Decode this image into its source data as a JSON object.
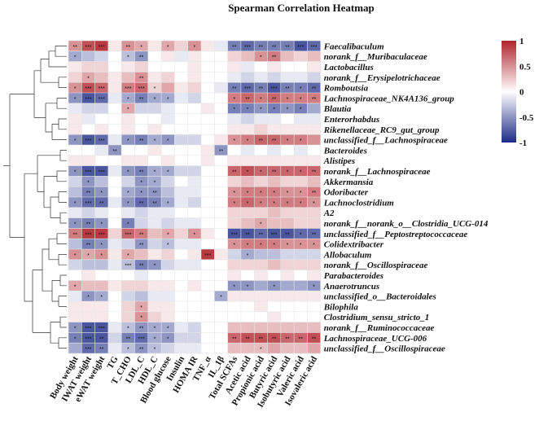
{
  "chart_data": {
    "type": "heatmap",
    "title": "Spearman Correlation Heatmap",
    "rows": [
      "Faecalibaculum",
      "norank_f__Muribaculaceae",
      "Lactobacillus",
      "norank_f__Erysipelotrichaceae",
      "Romboutsia",
      "Lachnospiraceae_NK4A136_group",
      "Blautia",
      "Enterorhabdus",
      "Rikenellaceae_RC9_gut_group",
      "unclassified_f__Lachnospiraceae",
      "Bacteroides",
      "Alistipes",
      "norank_f__Lachnospiraceae",
      "Akkermansia",
      "Odoribacter",
      "Lachnoclostridium",
      "A2",
      "norank_f__norank_o__Clostridia_UCG-014",
      "unclassified_f__Peptostreptococcaceae",
      "Colidextribacter",
      "Allobaculum",
      "norank_f__Oscillospiraceae",
      "Parabacteroides",
      "Anaerotruncus",
      "unclassified_o__Bacteroidales",
      "Bilophila",
      "Clostridium_sensu_stricto_1",
      "norank_f__Ruminococcaceae",
      "Lachnospiraceae_UCG-006",
      "unclassified_f__Oscillospiraceae"
    ],
    "columns": [
      "Body weight",
      "IWAT weight",
      "eWAT weight",
      "TG",
      "T_CHO",
      "LDL_C",
      "HDL_C",
      "Blood glucose",
      "Insulin",
      "HOMA IR",
      "TNF_α",
      "IL_1β",
      "Total SCFAs",
      "Acetic acid",
      "Propionic acid",
      "Butyric acid",
      "Isobutyric acid",
      "Valeric acid",
      "Isovaleric acid"
    ],
    "values": [
      [
        0.5,
        0.8,
        0.9,
        0.1,
        0.5,
        0.4,
        0.1,
        0.4,
        0.2,
        0.5,
        0.1,
        -0.1,
        -0.6,
        -0.7,
        -0.6,
        -0.6,
        -0.6,
        -0.8,
        -0.7
      ],
      [
        -0.4,
        -0.3,
        -0.2,
        0.0,
        -0.3,
        -0.5,
        0.0,
        0.1,
        -0.1,
        0.1,
        0.0,
        0.0,
        0.2,
        0.3,
        0.5,
        0.6,
        0.3,
        0.2,
        0.3
      ],
      [
        0.1,
        0.2,
        0.2,
        0.0,
        0.1,
        0.2,
        0.0,
        0.0,
        0.0,
        0.1,
        0.0,
        0.0,
        0.1,
        -0.1,
        0.0,
        0.1,
        0.0,
        0.0,
        0.1
      ],
      [
        0.2,
        0.4,
        0.3,
        0.1,
        0.3,
        0.5,
        0.1,
        0.2,
        0.0,
        0.1,
        0.0,
        0.0,
        -0.1,
        -0.2,
        -0.1,
        -0.2,
        -0.1,
        -0.1,
        -0.2
      ],
      [
        0.5,
        0.8,
        0.7,
        0.1,
        0.6,
        0.7,
        0.2,
        0.4,
        0.1,
        0.2,
        0.0,
        -0.1,
        -0.6,
        -0.7,
        -0.6,
        -0.8,
        -0.6,
        -0.6,
        -0.7
      ],
      [
        -0.5,
        -0.8,
        -0.7,
        -0.1,
        -0.4,
        -0.6,
        -0.4,
        -0.4,
        -0.1,
        -0.2,
        0.0,
        0.0,
        0.6,
        0.7,
        0.6,
        0.7,
        0.6,
        0.6,
        0.6
      ],
      [
        -0.1,
        -0.2,
        -0.2,
        0.0,
        0.4,
        -0.2,
        -0.2,
        -0.1,
        0.0,
        0.0,
        0.1,
        0.0,
        -0.6,
        -0.6,
        -0.5,
        -0.6,
        -0.5,
        -0.6,
        -0.4
      ],
      [
        0.1,
        -0.1,
        0.0,
        0.0,
        0.1,
        0.0,
        0.0,
        -0.1,
        0.0,
        0.0,
        0.0,
        0.0,
        -0.1,
        -0.2,
        -0.1,
        -0.1,
        0.0,
        -0.1,
        -0.1
      ],
      [
        0.1,
        0.0,
        0.1,
        0.0,
        0.1,
        0.0,
        0.1,
        0.0,
        0.0,
        0.0,
        0.0,
        0.0,
        0.1,
        0.1,
        0.2,
        0.1,
        0.1,
        0.1,
        0.1
      ],
      [
        -0.5,
        -0.8,
        -0.7,
        -0.1,
        -0.5,
        -0.6,
        -0.4,
        -0.5,
        -0.2,
        -0.2,
        0.0,
        0.1,
        0.5,
        0.6,
        0.7,
        0.7,
        0.6,
        0.6,
        0.5
      ],
      [
        0.0,
        0.0,
        -0.1,
        -0.5,
        0.0,
        0.0,
        0.1,
        0.0,
        0.0,
        0.0,
        0.1,
        -0.5,
        0.0,
        -0.1,
        0.0,
        -0.1,
        0.0,
        -0.1,
        0.0
      ],
      [
        0.1,
        0.1,
        0.0,
        0.0,
        0.1,
        0.1,
        0.0,
        0.1,
        0.0,
        0.0,
        0.1,
        0.0,
        0.1,
        0.1,
        0.1,
        0.1,
        0.1,
        0.1,
        0.1
      ],
      [
        -0.5,
        -0.8,
        -0.8,
        -0.1,
        -0.5,
        -0.6,
        -0.4,
        -0.4,
        -0.2,
        -0.2,
        0.0,
        0.0,
        0.7,
        0.8,
        0.7,
        0.7,
        0.7,
        0.7,
        0.7
      ],
      [
        -0.2,
        -0.5,
        -0.3,
        0.0,
        -0.2,
        -0.5,
        -0.4,
        -0.2,
        0.0,
        -0.1,
        0.0,
        0.0,
        0.2,
        0.3,
        0.2,
        0.3,
        0.2,
        0.2,
        0.3
      ],
      [
        -0.3,
        -0.6,
        -0.5,
        0.0,
        -0.4,
        -0.5,
        -0.5,
        -0.3,
        -0.1,
        -0.1,
        0.0,
        0.0,
        0.5,
        0.6,
        0.6,
        0.6,
        0.5,
        0.5,
        0.6
      ],
      [
        -0.5,
        -0.7,
        -0.7,
        -0.1,
        -0.5,
        -0.7,
        -0.6,
        -0.4,
        -0.1,
        -0.2,
        0.0,
        0.0,
        0.6,
        0.7,
        0.6,
        0.6,
        0.6,
        0.6,
        0.5
      ],
      [
        -0.1,
        -0.2,
        -0.1,
        0.0,
        -0.1,
        -0.2,
        -0.1,
        -0.1,
        0.0,
        0.0,
        0.0,
        0.0,
        0.2,
        0.2,
        0.2,
        0.3,
        0.2,
        0.2,
        0.2
      ],
      [
        -0.5,
        -0.6,
        -0.5,
        0.0,
        -0.6,
        -0.2,
        -0.1,
        -0.2,
        -0.1,
        -0.1,
        0.0,
        0.0,
        0.2,
        0.3,
        0.4,
        0.3,
        0.3,
        0.2,
        0.2
      ],
      [
        0.6,
        0.9,
        0.9,
        0.2,
        0.7,
        0.6,
        0.3,
        0.4,
        0.2,
        0.5,
        0.1,
        0.0,
        -0.8,
        -0.8,
        -0.7,
        -0.8,
        -0.8,
        -0.7,
        -0.7
      ],
      [
        -0.3,
        -0.6,
        -0.5,
        -0.1,
        -0.2,
        -0.5,
        -0.2,
        -0.3,
        -0.1,
        -0.1,
        0.0,
        0.0,
        0.5,
        0.6,
        0.6,
        0.6,
        0.5,
        0.5,
        0.5
      ],
      [
        0.5,
        0.4,
        0.5,
        0.1,
        0.4,
        0.3,
        0.1,
        0.2,
        0.0,
        0.1,
        0.9,
        0.1,
        -0.2,
        -0.4,
        -0.3,
        -0.3,
        -0.2,
        -0.2,
        -0.2
      ],
      [
        -0.2,
        -0.3,
        -0.3,
        -0.1,
        -0.3,
        -0.6,
        -0.5,
        -0.2,
        -0.1,
        -0.1,
        0.0,
        0.0,
        0.2,
        0.2,
        0.2,
        0.3,
        0.2,
        0.2,
        0.2
      ],
      [
        0.0,
        0.1,
        0.0,
        0.0,
        0.0,
        -0.1,
        0.0,
        0.0,
        0.0,
        0.0,
        0.0,
        0.0,
        0.1,
        0.0,
        0.1,
        0.0,
        0.1,
        0.0,
        0.1
      ],
      [
        0.4,
        0.3,
        0.3,
        0.1,
        0.2,
        0.2,
        0.1,
        0.1,
        0.0,
        0.1,
        0.0,
        0.0,
        -0.5,
        -0.5,
        -0.4,
        -0.5,
        -0.4,
        -0.4,
        -0.5
      ],
      [
        -0.1,
        -0.5,
        -0.4,
        0.0,
        -0.2,
        -0.3,
        -0.1,
        -0.1,
        0.0,
        0.0,
        0.0,
        -0.4,
        0.1,
        0.1,
        0.1,
        0.1,
        0.1,
        0.1,
        0.1
      ],
      [
        0.1,
        0.1,
        0.1,
        0.0,
        0.2,
        0.4,
        0.1,
        0.1,
        0.0,
        0.0,
        0.0,
        0.0,
        0.0,
        0.0,
        0.1,
        0.0,
        0.0,
        0.0,
        0.0
      ],
      [
        0.1,
        0.1,
        0.1,
        0.0,
        0.2,
        0.5,
        0.2,
        0.1,
        0.0,
        0.0,
        0.0,
        0.0,
        0.0,
        0.0,
        0.0,
        0.1,
        0.0,
        0.0,
        0.0
      ],
      [
        -0.5,
        -0.8,
        -0.8,
        -0.1,
        -0.3,
        -0.5,
        -0.4,
        -0.4,
        -0.1,
        -0.2,
        0.0,
        0.0,
        0.3,
        0.3,
        0.3,
        0.3,
        0.3,
        0.3,
        0.3
      ],
      [
        -0.6,
        -0.8,
        -0.8,
        -0.2,
        -0.6,
        -0.7,
        -0.4,
        -0.5,
        -0.2,
        -0.2,
        0.0,
        0.0,
        0.7,
        0.8,
        0.8,
        0.8,
        0.7,
        0.7,
        0.8
      ],
      [
        -0.4,
        -0.7,
        -0.6,
        -0.1,
        -0.3,
        -0.5,
        -0.3,
        -0.2,
        -0.1,
        -0.1,
        0.0,
        0.0,
        0.3,
        0.3,
        0.3,
        0.4,
        0.3,
        0.3,
        0.4
      ]
    ],
    "stars": [
      [
        "**",
        "***",
        "***",
        "",
        "**",
        "*",
        "",
        "*",
        "",
        "*",
        "",
        "",
        "**",
        "***",
        "**",
        "**",
        "**",
        "***",
        "***"
      ],
      [
        "*",
        "",
        "",
        "",
        "*",
        "**",
        "",
        "",
        "",
        "",
        "",
        "",
        "",
        "",
        "*",
        "**",
        "",
        "",
        ""
      ],
      [
        "",
        "",
        "",
        "",
        "",
        "",
        "",
        "",
        "",
        "",
        "",
        "",
        "",
        "",
        "",
        "",
        "",
        "",
        ""
      ],
      [
        "",
        "*",
        "",
        "",
        "",
        "**",
        "",
        "",
        "",
        "",
        "",
        "",
        "",
        "",
        "",
        "",
        "",
        "",
        ""
      ],
      [
        "*",
        "***",
        "***",
        "",
        "***",
        "***",
        "*",
        "",
        "",
        "",
        "",
        "",
        "**",
        "***",
        "**",
        "***",
        "**",
        "*",
        "**"
      ],
      [
        "*",
        "***",
        "***",
        "",
        "*",
        "**",
        "*",
        "*",
        "",
        "",
        "",
        "",
        "*",
        "**",
        "*",
        "**",
        "*",
        "*",
        "**"
      ],
      [
        "",
        "",
        "",
        "",
        "*",
        "",
        "",
        "",
        "",
        "",
        "",
        "",
        "*",
        "*",
        "*",
        "*",
        "*",
        "*",
        ""
      ],
      [
        "",
        "",
        "",
        "",
        "",
        "",
        "",
        "",
        "",
        "",
        "",
        "",
        "",
        "",
        "",
        "",
        "",
        "",
        ""
      ],
      [
        "",
        "",
        "",
        "",
        "",
        "",
        "",
        "",
        "",
        "",
        "",
        "",
        "",
        "",
        "",
        "",
        "",
        "",
        ""
      ],
      [
        "*",
        "***",
        "***",
        "",
        "*",
        "**",
        "*",
        "*",
        "",
        "",
        "",
        "",
        "*",
        "*",
        "**",
        "**",
        "*",
        "*",
        ""
      ],
      [
        "",
        "",
        "",
        "**",
        "",
        "",
        "",
        "",
        "",
        "",
        "",
        "**",
        "",
        "",
        "",
        "",
        "",
        "",
        ""
      ],
      [
        "",
        "",
        "",
        "",
        "",
        "",
        "",
        "",
        "",
        "",
        "",
        "",
        "",
        "",
        "",
        "",
        "",
        "",
        ""
      ],
      [
        "*",
        "***",
        "***",
        "",
        "*",
        "**",
        "*",
        "*",
        "",
        "",
        "",
        "",
        "**",
        "*",
        "*",
        "**",
        "*",
        "*",
        "**"
      ],
      [
        "",
        "*",
        "",
        "",
        "",
        "*",
        "*",
        "",
        "",
        "",
        "",
        "",
        "",
        "",
        "",
        "",
        "",
        "",
        ""
      ],
      [
        "",
        "**",
        "*",
        "",
        "*",
        "*",
        "**",
        "",
        "",
        "",
        "",
        "",
        "*",
        "*",
        "*",
        "*",
        "*",
        "*",
        "**"
      ],
      [
        "*",
        "***",
        "**",
        "",
        "*",
        "**",
        "**",
        "*",
        "",
        "",
        "",
        "",
        "*",
        "*",
        "*",
        "*",
        "*",
        "*",
        "*"
      ],
      [
        "",
        "",
        "",
        "",
        "",
        "",
        "",
        "",
        "",
        "",
        "",
        "",
        "",
        "",
        "",
        "",
        "",
        "",
        ""
      ],
      [
        "*",
        "**",
        "*",
        "",
        "*",
        "",
        "",
        "",
        "",
        "",
        "",
        "",
        "",
        "",
        "*",
        "",
        "",
        "",
        ""
      ],
      [
        "**",
        "***",
        "***",
        "",
        "***",
        "**",
        "",
        "*",
        "",
        "*",
        "",
        "",
        "***",
        "**",
        "**",
        "***",
        "**",
        "*",
        "**"
      ],
      [
        "",
        "**",
        "*",
        "",
        "",
        "**",
        "",
        "*",
        "",
        "",
        "",
        "",
        "*",
        "*",
        "*",
        "*",
        "*",
        "*",
        "*"
      ],
      [
        "*",
        "*",
        "*",
        "",
        "*",
        "",
        "",
        "",
        "",
        "",
        "***",
        "",
        "",
        "*",
        "",
        "",
        "",
        "",
        ""
      ],
      [
        "",
        "",
        "",
        "",
        "***",
        "**",
        "*",
        "",
        "",
        "",
        "",
        "",
        "",
        "",
        "",
        "",
        "",
        "",
        ""
      ],
      [
        "",
        "",
        "",
        "",
        "",
        "",
        "",
        "",
        "",
        "",
        "",
        "",
        "",
        "",
        "",
        "",
        "",
        "",
        ""
      ],
      [
        "*",
        "",
        "",
        "",
        "",
        "",
        "",
        "",
        "",
        "",
        "",
        "",
        "*",
        "*",
        "",
        "*",
        "",
        "",
        "*"
      ],
      [
        "",
        "*",
        "*",
        "",
        "",
        "",
        "",
        "",
        "",
        "",
        "",
        "*",
        "",
        "",
        "",
        "",
        "",
        "",
        ""
      ],
      [
        "",
        "",
        "",
        "",
        "",
        "*",
        "",
        "",
        "",
        "",
        "",
        "",
        "",
        "",
        "",
        "",
        "",
        "",
        ""
      ],
      [
        "",
        "",
        "",
        "",
        "",
        "*",
        "",
        "",
        "",
        "",
        "",
        "",
        "",
        "",
        "",
        "",
        "",
        "",
        ""
      ],
      [
        "*",
        "***",
        "***",
        "",
        "*",
        "**",
        "*",
        "*",
        "",
        "",
        "",
        "",
        "",
        "",
        "",
        "",
        "",
        "",
        ""
      ],
      [
        "*",
        "***",
        "**",
        "",
        "**",
        "***",
        "*",
        "*",
        "",
        "",
        "",
        "",
        "**",
        "**",
        "**",
        "**",
        "**",
        "**",
        "**"
      ],
      [
        "",
        "***",
        "**",
        "",
        "*",
        "**",
        "*",
        "",
        "",
        "",
        "",
        "",
        "",
        "",
        "*",
        "",
        "",
        "",
        ""
      ]
    ],
    "scale": {
      "min": -1,
      "max": 1,
      "ticks": [
        "1",
        "0.5",
        "0",
        "-0.5",
        "-1"
      ],
      "low_color": "#1c2a87",
      "mid_color": "#ffffff",
      "high_color": "#b1242c"
    },
    "dendrogram_side": "left",
    "legend_position": "top-right"
  }
}
